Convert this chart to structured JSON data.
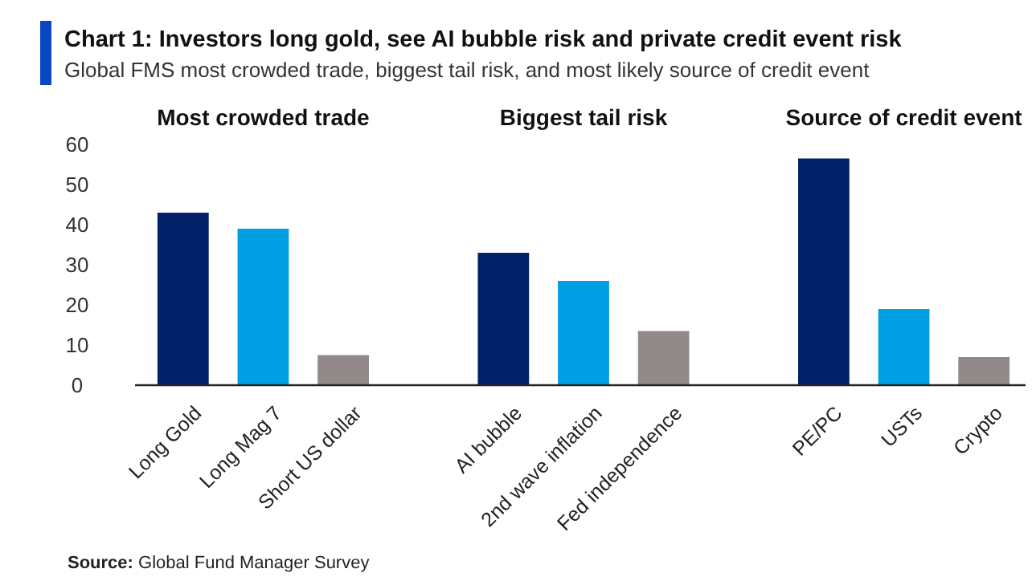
{
  "chart_data": {
    "type": "bar",
    "title": "Chart 1: Investors long gold, see AI bubble risk and private credit event risk",
    "subtitle": "Global FMS most crowded trade, biggest tail risk, and most likely source of credit event",
    "categories": [
      "Long Gold",
      "Long Mag 7",
      "Short US dollar",
      null,
      "AI bubble",
      "2nd wave inflation",
      "Fed independence",
      null,
      "PE/PC",
      "USTs",
      "Crypto"
    ],
    "values": [
      43,
      39,
      7.5,
      null,
      33,
      26,
      13.5,
      null,
      56.5,
      19,
      7
    ],
    "colors": [
      "#012169",
      "#009fe3",
      "#928a8a",
      null,
      "#012169",
      "#009fe3",
      "#928a8a",
      null,
      "#012169",
      "#009fe3",
      "#928a8a"
    ],
    "ylim": [
      0,
      60
    ],
    "yticks": [
      0,
      10,
      20,
      30,
      40,
      50,
      60
    ],
    "grid": false,
    "annotations": [
      "Most crowded trade",
      "Biggest tail risk",
      "Source of credit event",
      "Source: Global Fund Manager Survey"
    ]
  }
}
